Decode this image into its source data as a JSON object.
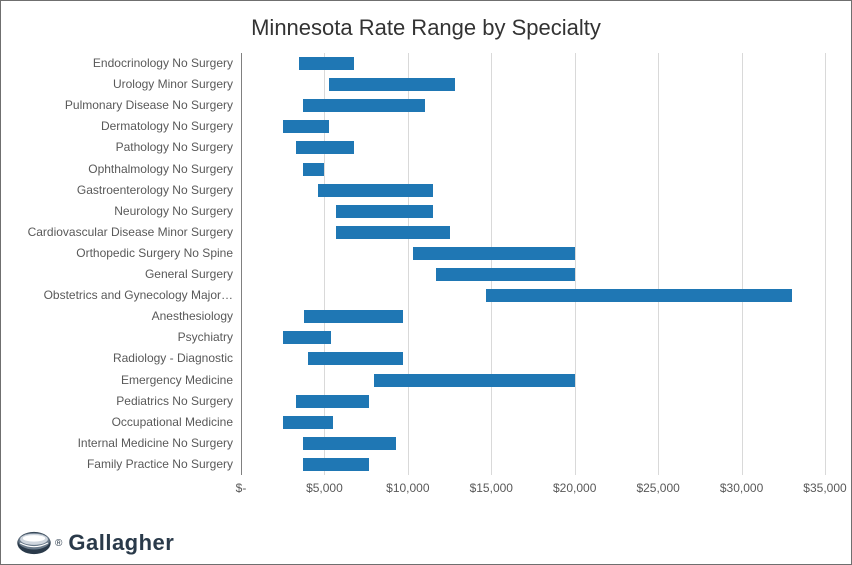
{
  "chart": {
    "type": "floating-hbar",
    "title": "Minnesota Rate Range by Specialty",
    "title_fontsize": 22,
    "title_color": "#333333",
    "background_color": "#ffffff",
    "border_color": "#6f6f6f",
    "bar_color": "#1f77b4",
    "gridline_color": "#d9d9d9",
    "axis_color": "#808080",
    "label_color": "#595959",
    "label_fontsize": 12,
    "xlim": [
      0,
      35000
    ],
    "xtick_step": 5000,
    "xtick_format": "currency-thousands",
    "xtick_labels": [
      "$-",
      "$5,000",
      "$10,000",
      "$15,000",
      "$20,000",
      "$25,000",
      "$30,000",
      "$35,000"
    ],
    "categories": [
      "Endocrinology No Surgery",
      "Urology Minor Surgery",
      "Pulmonary Disease No Surgery",
      "Dermatology No Surgery",
      "Pathology No Surgery",
      "Ophthalmology No Surgery",
      "Gastroenterology No Surgery",
      "Neurology No Surgery",
      "Cardiovascular Disease Minor Surgery",
      "Orthopedic Surgery No Spine",
      "General Surgery",
      "Obstetrics and Gynecology Major Surgery",
      "Anesthesiology",
      "Psychiatry",
      "Radiology - Diagnostic",
      "Emergency Medicine",
      "Pediatrics No Surgery",
      "Occupational Medicine",
      "Internal Medicine No Surgery",
      "Family Practice No Surgery"
    ],
    "display_categories": [
      "Endocrinology No Surgery",
      "Urology Minor Surgery",
      "Pulmonary Disease No Surgery",
      "Dermatology No Surgery",
      "Pathology No Surgery",
      "Ophthalmology No Surgery",
      "Gastroenterology No Surgery",
      "Neurology No Surgery",
      "Cardiovascular Disease Minor Surgery",
      "Orthopedic Surgery No Spine",
      "General Surgery",
      "Obstetrics and Gynecology Major…",
      "Anesthesiology",
      "Psychiatry",
      "Radiology - Diagnostic",
      "Emergency Medicine",
      "Pediatrics No Surgery",
      "Occupational Medicine",
      "Internal Medicine No Surgery",
      "Family Practice No Surgery"
    ],
    "ranges": [
      {
        "low": 3500,
        "high": 6800
      },
      {
        "low": 5300,
        "high": 12800
      },
      {
        "low": 3700,
        "high": 11000
      },
      {
        "low": 2500,
        "high": 5300
      },
      {
        "low": 3300,
        "high": 6800
      },
      {
        "low": 3700,
        "high": 5000
      },
      {
        "low": 4600,
        "high": 11500
      },
      {
        "low": 5700,
        "high": 11500
      },
      {
        "low": 5700,
        "high": 12500
      },
      {
        "low": 10300,
        "high": 20000
      },
      {
        "low": 11700,
        "high": 20000
      },
      {
        "low": 14700,
        "high": 33000
      },
      {
        "low": 3800,
        "high": 9700
      },
      {
        "low": 2500,
        "high": 5400
      },
      {
        "low": 4000,
        "high": 9700
      },
      {
        "low": 8000,
        "high": 20000
      },
      {
        "low": 3300,
        "high": 7700
      },
      {
        "low": 2500,
        "high": 5500
      },
      {
        "low": 3700,
        "high": 9300
      },
      {
        "low": 3700,
        "high": 7700
      }
    ]
  },
  "logo": {
    "text": "Gallagher",
    "text_color": "#2a3a4a",
    "icon_colors": {
      "base": "#2a3a4a",
      "mid": "#6a7a8a",
      "light": "#cfd6de"
    }
  }
}
